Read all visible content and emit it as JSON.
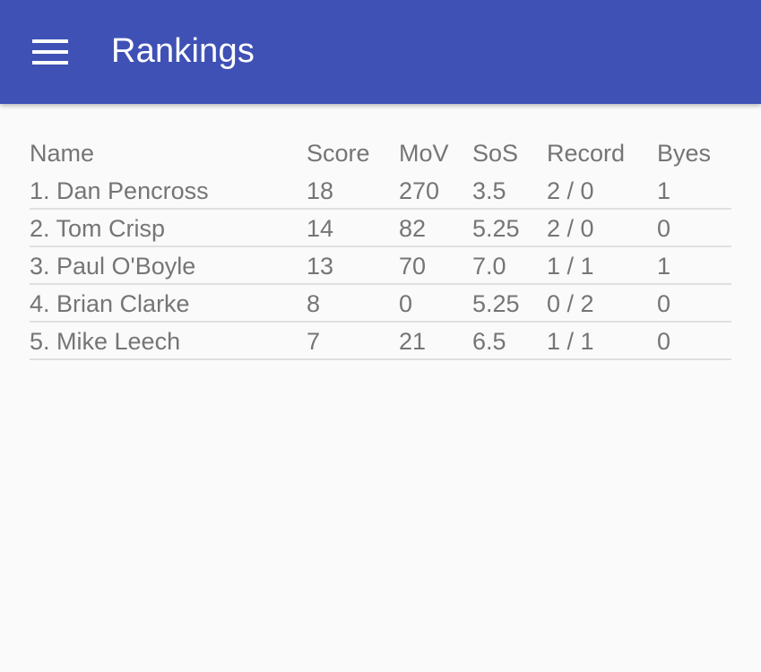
{
  "appbar": {
    "title": "Rankings",
    "menu_icon": "menu-icon",
    "color": "#3f51b5"
  },
  "table": {
    "headers": {
      "name": "Name",
      "score": "Score",
      "mov": "MoV",
      "sos": "SoS",
      "record": "Record",
      "byes": "Byes"
    },
    "rows": [
      {
        "name": "1. Dan Pencross",
        "score": "18",
        "mov": "270",
        "sos": "3.5",
        "record": "2 / 0",
        "byes": "1"
      },
      {
        "name": "2. Tom Crisp",
        "score": "14",
        "mov": "82",
        "sos": "5.25",
        "record": "2 / 0",
        "byes": "0"
      },
      {
        "name": "3. Paul O'Boyle",
        "score": "13",
        "mov": "70",
        "sos": "7.0",
        "record": "1 / 1",
        "byes": "1"
      },
      {
        "name": "4. Brian Clarke",
        "score": "8",
        "mov": "0",
        "sos": "5.25",
        "record": "0 / 2",
        "byes": "0"
      },
      {
        "name": "5. Mike Leech",
        "score": "7",
        "mov": "21",
        "sos": "6.5",
        "record": "1 / 1",
        "byes": "0"
      }
    ]
  }
}
